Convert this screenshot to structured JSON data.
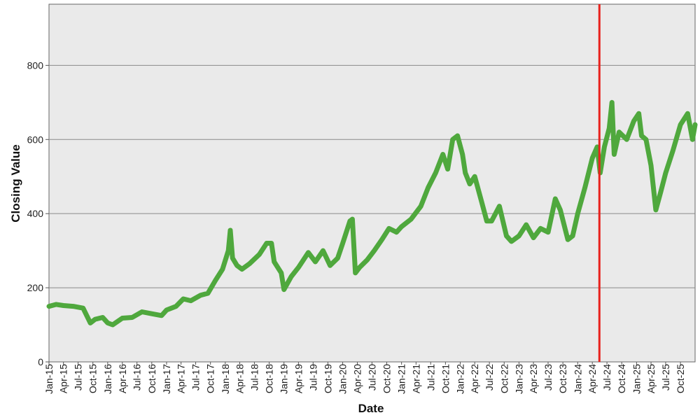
{
  "chart_data": {
    "type": "line",
    "title": "",
    "xlabel": "Date",
    "ylabel": "Closing Value",
    "ylim": [
      0,
      965
    ],
    "xlim": [
      "2015-01-01",
      "2025-12-31"
    ],
    "yticks": [
      0,
      200,
      400,
      600,
      800
    ],
    "grid": "horizontal",
    "xtick_labels": [
      "Jan-15",
      "Apr-15",
      "Jul-15",
      "Oct-15",
      "Jan-16",
      "Apr-16",
      "Jul-16",
      "Oct-16",
      "Jan-17",
      "Apr-17",
      "Jul-17",
      "Oct-17",
      "Jan-18",
      "Apr-18",
      "Jul-18",
      "Oct-18",
      "Jan-19",
      "Apr-19",
      "Jul-19",
      "Oct-19",
      "Jan-20",
      "Apr-20",
      "Jul-20",
      "Oct-20",
      "Jan-21",
      "Apr-21",
      "Jul-21",
      "Oct-21",
      "Jan-22",
      "Apr-22",
      "Jul-22",
      "Oct-22",
      "Jan-23",
      "Apr-23",
      "Jul-23",
      "Oct-23",
      "Jan-24",
      "Apr-24",
      "Jul-24",
      "Oct-24",
      "Jan-25",
      "Apr-25",
      "Jul-25",
      "Oct-25"
    ],
    "series": [
      {
        "color": "#4fa83d",
        "points": [
          [
            "2015-01-01",
            150
          ],
          [
            "2015-02-15",
            155
          ],
          [
            "2015-04-01",
            152
          ],
          [
            "2015-06-01",
            150
          ],
          [
            "2015-08-01",
            145
          ],
          [
            "2015-09-15",
            105
          ],
          [
            "2015-10-15",
            115
          ],
          [
            "2015-12-01",
            120
          ],
          [
            "2016-01-01",
            105
          ],
          [
            "2016-02-01",
            100
          ],
          [
            "2016-04-01",
            118
          ],
          [
            "2016-06-01",
            120
          ],
          [
            "2016-08-01",
            135
          ],
          [
            "2016-10-01",
            130
          ],
          [
            "2016-12-01",
            125
          ],
          [
            "2017-01-01",
            140
          ],
          [
            "2017-03-01",
            150
          ],
          [
            "2017-04-15",
            170
          ],
          [
            "2017-06-01",
            165
          ],
          [
            "2017-08-01",
            180
          ],
          [
            "2017-09-15",
            185
          ],
          [
            "2017-11-01",
            220
          ],
          [
            "2017-12-15",
            250
          ],
          [
            "2018-01-20",
            300
          ],
          [
            "2018-02-01",
            355
          ],
          [
            "2018-02-15",
            280
          ],
          [
            "2018-03-15",
            260
          ],
          [
            "2018-04-15",
            250
          ],
          [
            "2018-06-01",
            265
          ],
          [
            "2018-08-01",
            290
          ],
          [
            "2018-09-15",
            320
          ],
          [
            "2018-10-15",
            320
          ],
          [
            "2018-11-01",
            270
          ],
          [
            "2018-12-15",
            240
          ],
          [
            "2019-01-01",
            195
          ],
          [
            "2019-02-15",
            230
          ],
          [
            "2019-04-01",
            255
          ],
          [
            "2019-06-01",
            295
          ],
          [
            "2019-07-15",
            270
          ],
          [
            "2019-09-01",
            300
          ],
          [
            "2019-10-15",
            260
          ],
          [
            "2019-12-01",
            280
          ],
          [
            "2020-01-01",
            320
          ],
          [
            "2020-02-15",
            380
          ],
          [
            "2020-03-01",
            385
          ],
          [
            "2020-03-20",
            240
          ],
          [
            "2020-04-15",
            255
          ],
          [
            "2020-06-01",
            275
          ],
          [
            "2020-07-15",
            300
          ],
          [
            "2020-09-01",
            330
          ],
          [
            "2020-10-15",
            360
          ],
          [
            "2020-12-01",
            350
          ],
          [
            "2021-01-01",
            365
          ],
          [
            "2021-03-01",
            385
          ],
          [
            "2021-05-01",
            420
          ],
          [
            "2021-06-15",
            470
          ],
          [
            "2021-08-01",
            510
          ],
          [
            "2021-09-15",
            560
          ],
          [
            "2021-10-15",
            520
          ],
          [
            "2021-11-15",
            600
          ],
          [
            "2021-12-15",
            610
          ],
          [
            "2022-01-15",
            560
          ],
          [
            "2022-02-01",
            510
          ],
          [
            "2022-03-01",
            480
          ],
          [
            "2022-04-01",
            500
          ],
          [
            "2022-05-15",
            430
          ],
          [
            "2022-06-15",
            380
          ],
          [
            "2022-07-15",
            380
          ],
          [
            "2022-09-01",
            420
          ],
          [
            "2022-10-15",
            340
          ],
          [
            "2022-11-15",
            325
          ],
          [
            "2023-01-01",
            340
          ],
          [
            "2023-02-15",
            370
          ],
          [
            "2023-04-01",
            335
          ],
          [
            "2023-05-15",
            360
          ],
          [
            "2023-07-01",
            350
          ],
          [
            "2023-08-15",
            440
          ],
          [
            "2023-09-15",
            410
          ],
          [
            "2023-11-01",
            330
          ],
          [
            "2023-12-01",
            340
          ],
          [
            "2024-01-01",
            400
          ],
          [
            "2024-02-15",
            470
          ],
          [
            "2024-04-01",
            550
          ],
          [
            "2024-05-01",
            580
          ],
          [
            "2024-05-20",
            510
          ],
          [
            "2024-06-15",
            580
          ],
          [
            "2024-07-15",
            630
          ],
          [
            "2024-08-01",
            700
          ],
          [
            "2024-08-15",
            560
          ],
          [
            "2024-09-15",
            620
          ],
          [
            "2024-11-01",
            600
          ],
          [
            "2024-12-15",
            650
          ],
          [
            "2025-01-15",
            670
          ],
          [
            "2025-02-01",
            610
          ],
          [
            "2025-03-01",
            600
          ],
          [
            "2025-04-01",
            530
          ],
          [
            "2025-05-01",
            410
          ],
          [
            "2025-06-01",
            460
          ],
          [
            "2025-07-01",
            510
          ],
          [
            "2025-08-15",
            570
          ],
          [
            "2025-10-01",
            640
          ],
          [
            "2025-11-15",
            670
          ],
          [
            "2025-12-15",
            600
          ],
          [
            "2025-12-31",
            640
          ]
        ]
      }
    ],
    "annotations": [
      {
        "type": "vertical-line",
        "x": "2024-05-15",
        "color": "#e8221d"
      }
    ]
  }
}
